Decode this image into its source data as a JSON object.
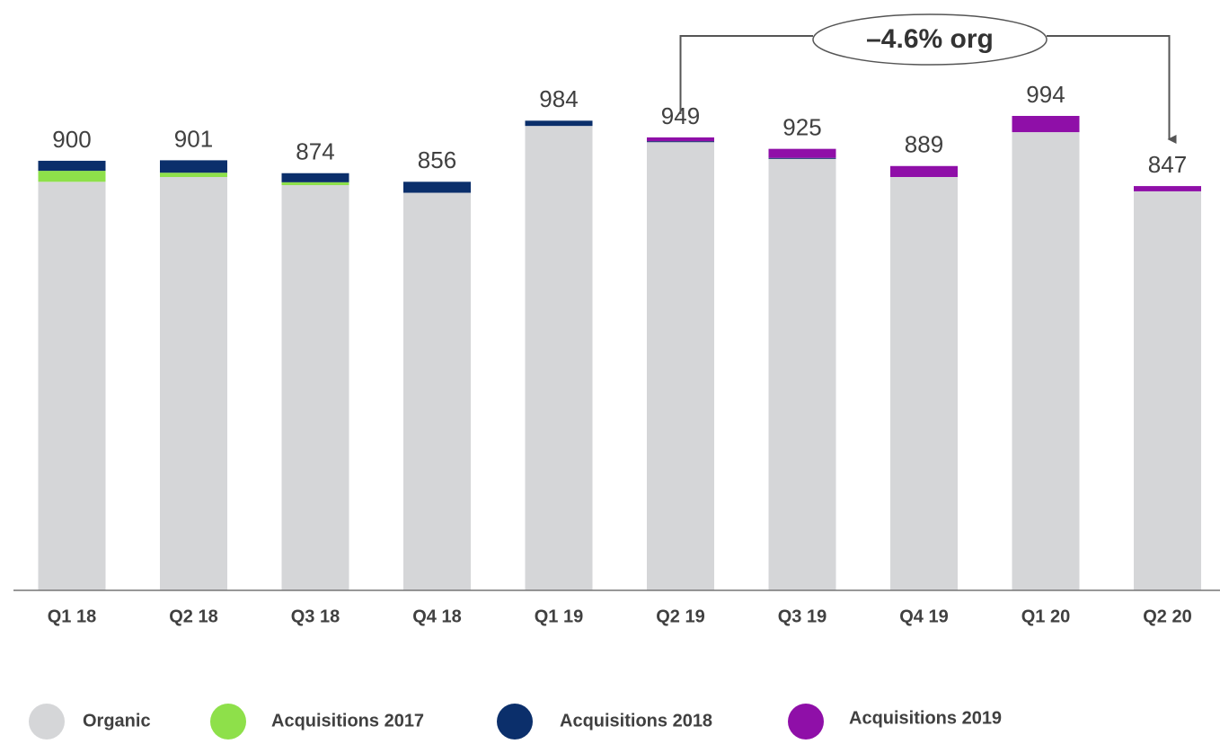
{
  "chart_data": {
    "type": "stacked_bar",
    "categories": [
      "Q1 18",
      "Q2 18",
      "Q3 18",
      "Q4 18",
      "Q1 19",
      "Q2 19",
      "Q3 19",
      "Q4 19",
      "Q1 20",
      "Q2 20"
    ],
    "series": [
      {
        "name": "Organic",
        "color": "#d5d6d8",
        "values": [
          856,
          866,
          849,
          833,
          973,
          939,
          904,
          866,
          960,
          836
        ]
      },
      {
        "name": "Acquisitions 2017",
        "color": "#8ee04a",
        "values": [
          23,
          9,
          6,
          0,
          0,
          0,
          0,
          0,
          0,
          0
        ]
      },
      {
        "name": "Acquisitions 2018",
        "color": "#0b2f6b",
        "values": [
          21,
          26,
          19,
          23,
          11,
          2,
          2,
          0,
          0,
          0
        ]
      },
      {
        "name": "Acquisitions 2019",
        "color": "#8f0fa8",
        "values": [
          0,
          0,
          0,
          0,
          0,
          8,
          19,
          23,
          34,
          11
        ]
      }
    ],
    "totals": [
      900,
      901,
      874,
      856,
      984,
      949,
      925,
      889,
      994,
      847
    ],
    "annotation": "–4.6% org"
  }
}
